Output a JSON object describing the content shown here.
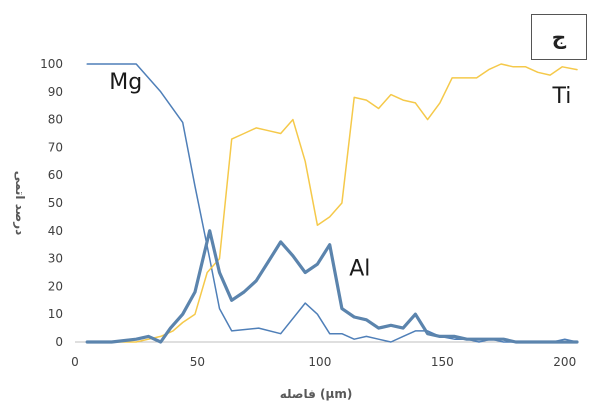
{
  "chart_data": {
    "type": "line",
    "xlabel": "فاصله (µm)",
    "ylabel": "درصد اتمی",
    "xlim": [
      0,
      205
    ],
    "ylim": [
      0,
      100
    ],
    "x_ticks": [
      "0",
      "50",
      "100",
      "150",
      "200"
    ],
    "y_ticks": [
      "0",
      "10",
      "20",
      "30",
      "40",
      "50",
      "60",
      "70",
      "80",
      "90",
      "100"
    ],
    "panel_label": "ج",
    "grid": false,
    "series": [
      {
        "name": "Mg",
        "color": "#4f7fb8",
        "points": [
          [
            5,
            100
          ],
          [
            13,
            100
          ],
          [
            25,
            100
          ],
          [
            35,
            90
          ],
          [
            44,
            79
          ],
          [
            49,
            56
          ],
          [
            55,
            30
          ],
          [
            59,
            12
          ],
          [
            64,
            4
          ],
          [
            75,
            5
          ],
          [
            84,
            3
          ],
          [
            94,
            14
          ],
          [
            99,
            10
          ],
          [
            104,
            3
          ],
          [
            109,
            3
          ],
          [
            114,
            1
          ],
          [
            119,
            2
          ],
          [
            124,
            1
          ],
          [
            129,
            0
          ],
          [
            134,
            2
          ],
          [
            139,
            4
          ],
          [
            144,
            4
          ],
          [
            149,
            2
          ],
          [
            155,
            1
          ],
          [
            160,
            1
          ],
          [
            165,
            0
          ],
          [
            170,
            1
          ],
          [
            175,
            0
          ],
          [
            180,
            0
          ],
          [
            185,
            0
          ],
          [
            190,
            0
          ],
          [
            195,
            0
          ],
          [
            200,
            1
          ],
          [
            205,
            0
          ]
        ]
      },
      {
        "name": "Ti",
        "color": "#f5c94a",
        "points": [
          [
            5,
            0
          ],
          [
            15,
            0
          ],
          [
            25,
            0
          ],
          [
            30,
            1
          ],
          [
            35,
            2
          ],
          [
            40,
            4
          ],
          [
            44,
            7
          ],
          [
            49,
            10
          ],
          [
            54,
            25
          ],
          [
            59,
            30
          ],
          [
            64,
            73
          ],
          [
            69,
            75
          ],
          [
            74,
            77
          ],
          [
            79,
            76
          ],
          [
            84,
            75
          ],
          [
            89,
            80
          ],
          [
            94,
            65
          ],
          [
            99,
            42
          ],
          [
            104,
            45
          ],
          [
            109,
            50
          ],
          [
            114,
            88
          ],
          [
            119,
            87
          ],
          [
            124,
            84
          ],
          [
            129,
            89
          ],
          [
            134,
            87
          ],
          [
            139,
            86
          ],
          [
            144,
            80
          ],
          [
            149,
            86
          ],
          [
            154,
            95
          ],
          [
            159,
            95
          ],
          [
            164,
            95
          ],
          [
            169,
            98
          ],
          [
            174,
            100
          ],
          [
            179,
            99
          ],
          [
            184,
            99
          ],
          [
            189,
            97
          ],
          [
            194,
            96
          ],
          [
            199,
            99
          ],
          [
            205,
            98
          ]
        ]
      },
      {
        "name": "Al",
        "color": "#5b84ad",
        "width": 3.2,
        "points": [
          [
            5,
            0
          ],
          [
            15,
            0
          ],
          [
            25,
            1
          ],
          [
            30,
            2
          ],
          [
            35,
            0
          ],
          [
            39,
            5
          ],
          [
            44,
            10
          ],
          [
            49,
            18
          ],
          [
            55,
            40
          ],
          [
            59,
            25
          ],
          [
            64,
            15
          ],
          [
            69,
            18
          ],
          [
            74,
            22
          ],
          [
            79,
            29
          ],
          [
            84,
            36
          ],
          [
            89,
            31
          ],
          [
            94,
            25
          ],
          [
            99,
            28
          ],
          [
            104,
            35
          ],
          [
            109,
            12
          ],
          [
            114,
            9
          ],
          [
            119,
            8
          ],
          [
            124,
            5
          ],
          [
            129,
            6
          ],
          [
            134,
            5
          ],
          [
            139,
            10
          ],
          [
            144,
            3
          ],
          [
            149,
            2
          ],
          [
            155,
            2
          ],
          [
            160,
            1
          ],
          [
            165,
            1
          ],
          [
            170,
            1
          ],
          [
            175,
            1
          ],
          [
            180,
            0
          ],
          [
            185,
            0
          ],
          [
            190,
            0
          ],
          [
            195,
            0
          ],
          [
            200,
            0
          ],
          [
            205,
            0
          ]
        ]
      }
    ],
    "annotations": [
      {
        "text": "Mg",
        "at": [
          14,
          91
        ]
      },
      {
        "text": "Ti",
        "at": [
          195,
          86
        ]
      },
      {
        "text": "Al",
        "at": [
          112,
          24
        ]
      }
    ]
  }
}
